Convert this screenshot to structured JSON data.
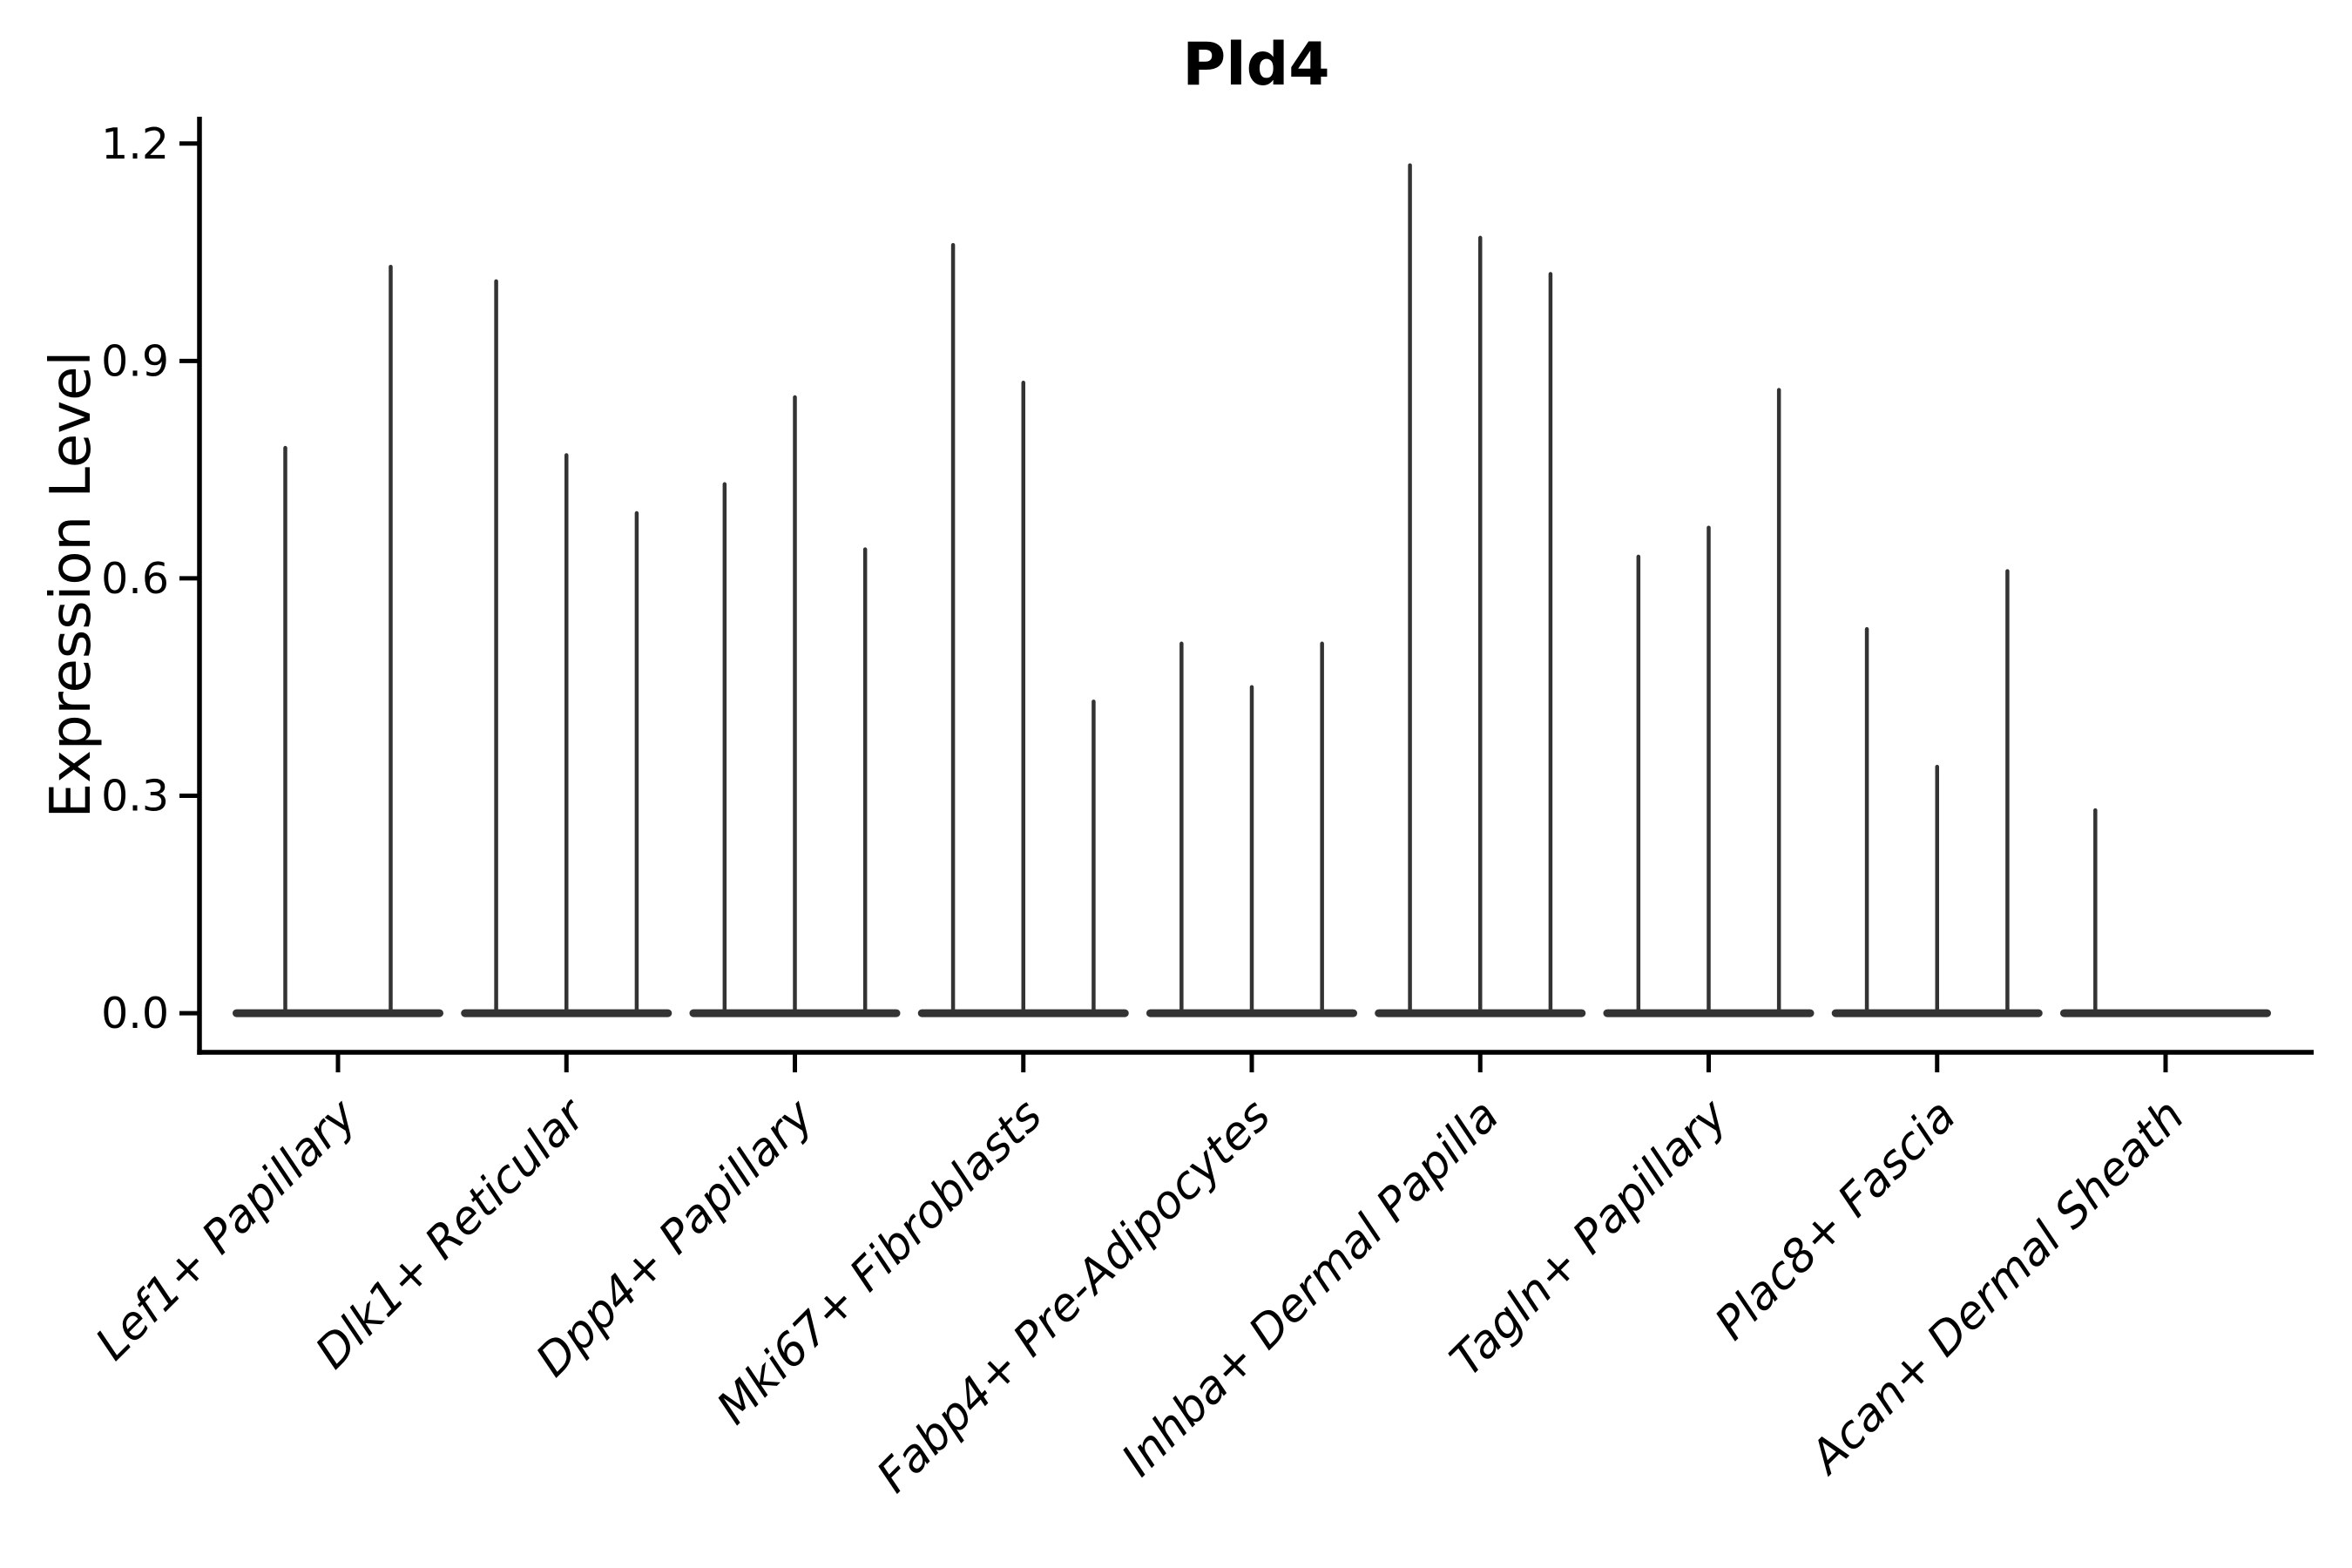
{
  "figure": {
    "title": "Pld4",
    "background_color": "#ffffff",
    "axis_color": "#000000",
    "text_color": "#000000",
    "violin_color": "#333333"
  },
  "chart_data": {
    "type": "violin",
    "title": "Pld4",
    "xlabel": "",
    "ylabel": "Expression Level",
    "yticks": [
      0.0,
      0.3,
      0.6,
      0.9,
      1.2
    ],
    "ytick_labels": [
      "0.0",
      "0.3",
      "0.6",
      "0.9",
      "1.2"
    ],
    "ylim": [
      -0.054,
      1.237
    ],
    "grid": false,
    "legend_position": "none",
    "categories": [
      "Lef1+ Papillary",
      "Dlk1+ Reticular",
      "Dpp4+ Papillary",
      "Mki67+ Fibroblasts",
      "Fabp4+ Pre-Adipocytes",
      "Inhba+ Dermal Papilla",
      "Tagln+ Papillary",
      "Plac8+ Fascia",
      "Acan+ Dermal Sheath"
    ],
    "violin_max_values": [
      [
        0.78,
        1.03
      ],
      [
        1.01,
        0.77,
        0.69
      ],
      [
        0.73,
        0.85,
        0.64
      ],
      [
        1.06,
        0.87,
        0.43
      ],
      [
        0.51,
        0.45,
        0.51
      ],
      [
        1.17,
        1.07,
        1.02
      ],
      [
        0.63,
        0.67,
        0.86
      ],
      [
        0.53,
        0.34,
        0.61
      ],
      [
        0.28,
        0.0,
        0.0
      ]
    ],
    "shape_note": "Each category holds dodged violins; nearly all density sits at expression 0 (flat wide base) with a thin vertical tail rising to the listed max value. Zero-valued violins are flat bases with no tail."
  }
}
